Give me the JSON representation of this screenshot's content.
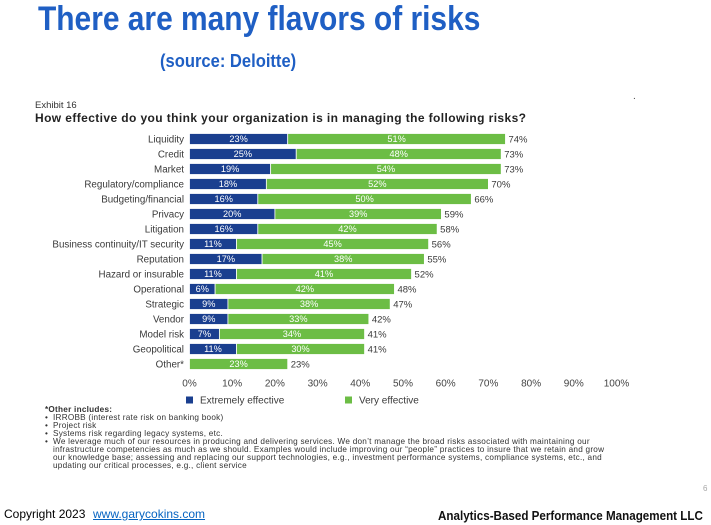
{
  "slide": {
    "title": "There are many flavors of risks",
    "subtitle": "(source: Deloitte)",
    "page_number": "6",
    "stray_mark": "."
  },
  "colors": {
    "title_blue": "#1f5fc4",
    "link_blue": "#0563c1"
  },
  "chart_data": {
    "type": "bar",
    "orientation": "horizontal",
    "stacked": true,
    "exhibit_label": "Exhibit 16",
    "title": "How effective do you think your organization is in managing the following risks?",
    "xlabel": "",
    "ylabel": "",
    "categories": [
      "Liquidity",
      "Credit",
      "Market",
      "Regulatory/compliance",
      "Budgeting/financial",
      "Privacy",
      "Litigation",
      "Business continuity/IT security",
      "Reputation",
      "Hazard or insurable",
      "Operational",
      "Strategic",
      "Vendor",
      "Model risk",
      "Geopolitical",
      "Other*"
    ],
    "series": [
      {
        "name": "Extremely effective",
        "color": "#1a3f8f",
        "values": [
          23,
          25,
          19,
          18,
          16,
          20,
          16,
          11,
          17,
          11,
          6,
          9,
          9,
          7,
          11,
          null
        ]
      },
      {
        "name": "Very effective",
        "color": "#6cbd45",
        "values": [
          51,
          48,
          54,
          52,
          50,
          39,
          42,
          45,
          38,
          41,
          42,
          38,
          33,
          34,
          30,
          23
        ]
      }
    ],
    "totals": [
      74,
      73,
      73,
      70,
      66,
      59,
      58,
      56,
      55,
      52,
      48,
      47,
      42,
      41,
      41,
      23
    ],
    "value_suffix": "%",
    "xlim": [
      0,
      100
    ],
    "xticks": [
      0,
      10,
      20,
      30,
      40,
      50,
      60,
      70,
      80,
      90,
      100
    ],
    "grid": false,
    "legend_position": "bottom",
    "footnote": {
      "heading": "*Other includes:",
      "bullet_glyph": "•",
      "items": [
        {
          "lines": [
            "IRROBB (interest rate risk on banking book)"
          ]
        },
        {
          "lines": [
            "Project risk"
          ]
        },
        {
          "lines": [
            "Systems risk regarding legacy systems, etc."
          ]
        },
        {
          "lines": [
            "We leverage much of our resources in producing and delivering services. We don’t manage the broad risks associated with maintaining our",
            "infrastructure competencies as much as we should. Examples would include improving our “people” practices to insure that we retain and grow",
            "our knowledge base; assessing and replacing our support technologies, e.g., investment performance systems, compliance systems, etc., and",
            "updating our critical processes, e.g., client service"
          ]
        }
      ]
    }
  },
  "footer": {
    "copyright": "Copyright 2023",
    "link_text": "www.garycokins.com",
    "company": "Analytics-Based Performance Management LLC"
  }
}
